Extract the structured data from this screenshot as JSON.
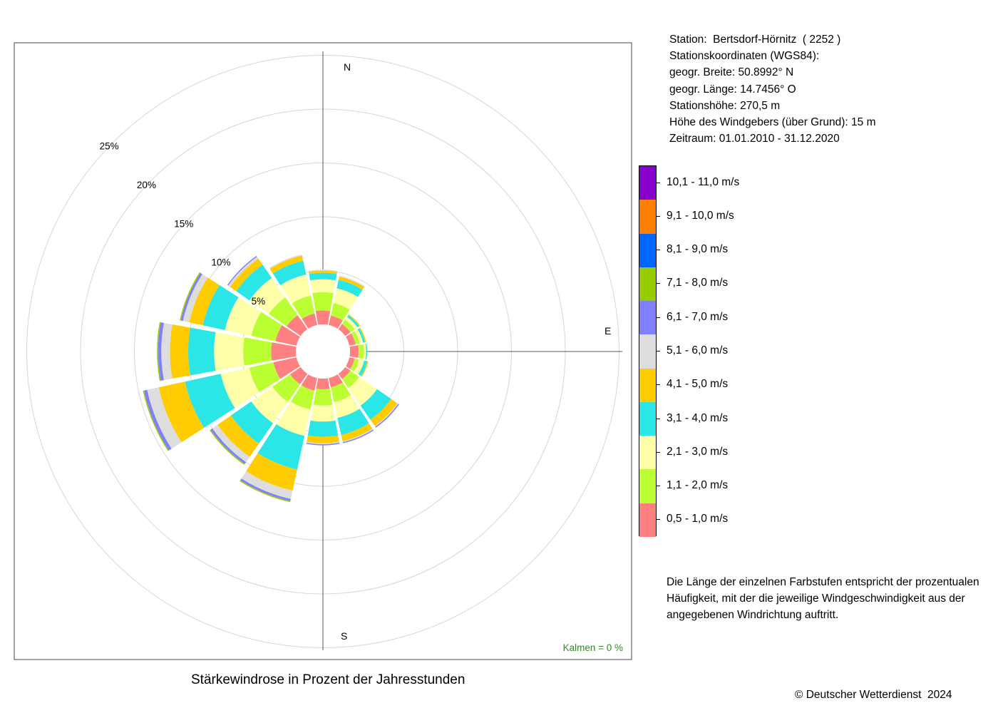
{
  "station_info": {
    "station": "Station:  Bertsdorf-Hörnitz  ( 2252 )",
    "coords_label": "Stationskoordinaten (WGS84):",
    "lat": "geogr. Breite: 50.8992° N",
    "lon": "geogr. Länge: 14.7456° O",
    "elevation": "Stationshöhe: 270,5 m",
    "sensor_height": "Höhe des Windgebers (über Grund): 15 m",
    "period": "Zeitraum: 01.01.2010 - 31.12.2020"
  },
  "note": "Die Länge der einzelnen Farbstufen entspricht der prozentualen Häufigkeit, mit der die jeweilige Windgeschwindigkeit aus der angegebenen Windrichtung auftritt.",
  "copyright": "© Deutscher Wetterdienst  2024",
  "chart_data": {
    "type": "wind-rose",
    "title": "Stärkewindrose in Prozent der Jahresstunden",
    "directions": [
      "N",
      "NNE",
      "NE",
      "ENE",
      "E",
      "ESE",
      "SE",
      "SSE",
      "S",
      "SSW",
      "SW",
      "WSW",
      "W",
      "WNW",
      "NW",
      "NNW"
    ],
    "direction_labels": [
      "N",
      "E",
      "S"
    ],
    "rings": [
      "5%",
      "10%",
      "15%",
      "20%",
      "25%"
    ],
    "calm": "Kalmen  =  0 %",
    "speed_classes": [
      {
        "label": "0,5 - 1,0 m/s",
        "color": "#FF8080"
      },
      {
        "label": "1,1 - 2,0 m/s",
        "color": "#BBFF33"
      },
      {
        "label": "2,1 - 3,0 m/s",
        "color": "#FFFFAA"
      },
      {
        "label": "3,1 - 4,0 m/s",
        "color": "#2AE6E6"
      },
      {
        "label": "4,1 - 5,0 m/s",
        "color": "#FFCC00"
      },
      {
        "label": "5,1 - 6,0 m/s",
        "color": "#DDDDDD"
      },
      {
        "label": "6,1 - 7,0 m/s",
        "color": "#8080FF"
      },
      {
        "label": "7,1 - 8,0 m/s",
        "color": "#99CC00"
      },
      {
        "label": "8,1 - 9,0 m/s",
        "color": "#0066FF"
      },
      {
        "label": "9,1 - 10,0 m/s",
        "color": "#FF8000"
      },
      {
        "label": "10,1 - 11,0 m/s",
        "color": "#8800CC"
      }
    ],
    "series": [
      {
        "direction": "N",
        "values": [
          1.3,
          1.7,
          1.2,
          0.6,
          0.2,
          0.1,
          0,
          0,
          0,
          0,
          0
        ]
      },
      {
        "direction": "NNE",
        "values": [
          0.9,
          1.2,
          1.4,
          0.8,
          0.3,
          0.1,
          0,
          0,
          0,
          0,
          0
        ]
      },
      {
        "direction": "NE",
        "values": [
          0.6,
          0.5,
          0.3,
          0.2,
          0.1,
          0,
          0,
          0,
          0,
          0,
          0
        ]
      },
      {
        "direction": "ENE",
        "values": [
          0.6,
          0.4,
          0.3,
          0.2,
          0.1,
          0,
          0,
          0,
          0,
          0,
          0
        ]
      },
      {
        "direction": "E",
        "values": [
          0.8,
          0.5,
          0.2,
          0.1,
          0,
          0,
          0,
          0,
          0,
          0,
          0
        ]
      },
      {
        "direction": "ESE",
        "values": [
          0.5,
          0.4,
          0.5,
          0.3,
          0.1,
          0,
          0,
          0,
          0,
          0,
          0
        ]
      },
      {
        "direction": "SE",
        "values": [
          0.6,
          1.0,
          2.0,
          1.6,
          0.7,
          0.1,
          0.1,
          0,
          0,
          0,
          0
        ]
      },
      {
        "direction": "SSE",
        "values": [
          0.9,
          1.4,
          1.5,
          1.6,
          0.6,
          0.1,
          0.1,
          0,
          0,
          0,
          0
        ]
      },
      {
        "direction": "S",
        "values": [
          1.0,
          1.5,
          1.5,
          1.4,
          0.6,
          0.1,
          0.1,
          0,
          0,
          0,
          0
        ]
      },
      {
        "direction": "SSW",
        "values": [
          1.2,
          1.8,
          2.5,
          3.2,
          2.0,
          0.8,
          0.2,
          0.1,
          0,
          0,
          0
        ]
      },
      {
        "direction": "SW",
        "values": [
          1.2,
          2.0,
          2.4,
          2.3,
          1.5,
          0.6,
          0.2,
          0.1,
          0,
          0,
          0
        ]
      },
      {
        "direction": "WSW",
        "values": [
          2.2,
          2.3,
          2.7,
          3.4,
          2.5,
          1.1,
          0.3,
          0.1,
          0,
          0,
          0
        ]
      },
      {
        "direction": "W",
        "values": [
          2.3,
          2.6,
          2.7,
          2.4,
          1.7,
          0.8,
          0.3,
          0.1,
          0,
          0,
          0
        ]
      },
      {
        "direction": "WNW",
        "values": [
          2.0,
          2.3,
          2.5,
          2.1,
          1.3,
          0.6,
          0.2,
          0.1,
          0,
          0,
          0
        ]
      },
      {
        "direction": "NW",
        "values": [
          1.6,
          2.0,
          2.2,
          1.5,
          0.7,
          0.2,
          0.1,
          0,
          0,
          0,
          0
        ]
      },
      {
        "direction": "NNW",
        "values": [
          1.1,
          1.7,
          2.0,
          1.3,
          0.5,
          0.1,
          0,
          0,
          0,
          0,
          0
        ]
      }
    ]
  }
}
